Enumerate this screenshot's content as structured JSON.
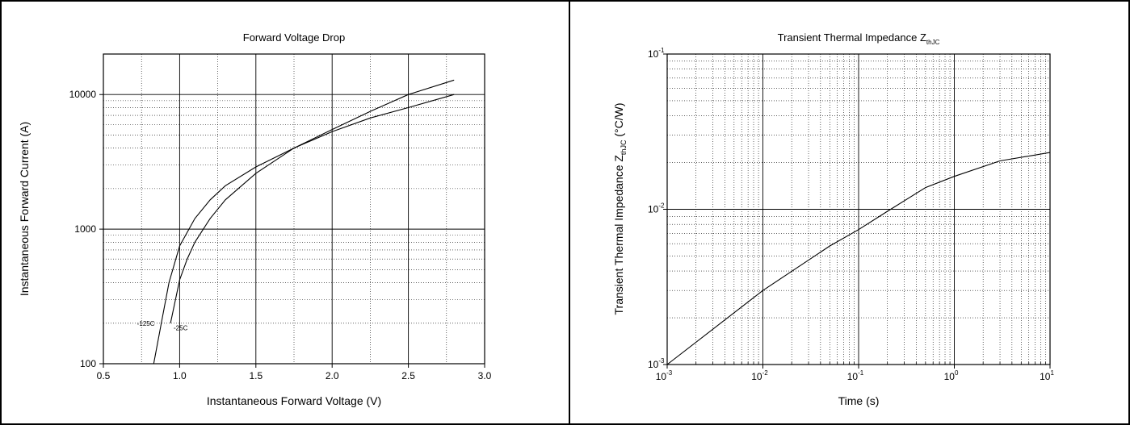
{
  "chart_data": [
    {
      "type": "line",
      "title": "Forward Voltage Drop",
      "xlabel": "Instantaneous Forward Voltage (V)",
      "ylabel": "Instantaneous Forward Current (A)",
      "xscale": "linear",
      "yscale": "log",
      "xlim": [
        0.5,
        3.0
      ],
      "ylim": [
        100,
        20000
      ],
      "x_ticks": [
        0.5,
        1.0,
        1.5,
        2.0,
        2.5,
        3.0
      ],
      "x_tick_labels": [
        "0.5",
        "1.0",
        "1.5",
        "2.0",
        "2.5",
        "3.0"
      ],
      "y_ticks": [
        100,
        1000,
        10000
      ],
      "y_tick_labels": [
        "100",
        "1000",
        "10000"
      ],
      "grid": true,
      "series": [
        {
          "name": "125C",
          "points": [
            [
              0.83,
              100
            ],
            [
              0.88,
              200
            ],
            [
              0.93,
              400
            ],
            [
              1.0,
              750
            ],
            [
              1.1,
              1200
            ],
            [
              1.2,
              1650
            ],
            [
              1.3,
              2100
            ],
            [
              1.5,
              2900
            ],
            [
              1.75,
              4000
            ],
            [
              2.0,
              5300
            ],
            [
              2.25,
              6700
            ],
            [
              2.5,
              8000
            ],
            [
              2.8,
              10000
            ]
          ]
        },
        {
          "name": "25C",
          "points": [
            [
              0.94,
              200
            ],
            [
              1.0,
              420
            ],
            [
              1.05,
              600
            ],
            [
              1.1,
              800
            ],
            [
              1.2,
              1200
            ],
            [
              1.3,
              1650
            ],
            [
              1.5,
              2600
            ],
            [
              1.75,
              4000
            ],
            [
              2.0,
              5500
            ],
            [
              2.25,
              7500
            ],
            [
              2.5,
              10000
            ],
            [
              2.8,
              12800
            ]
          ]
        }
      ],
      "annotations": [
        {
          "text": "125C",
          "x": 0.72,
          "y": 200
        },
        {
          "text": "25C",
          "x": 0.96,
          "y": 185
        }
      ]
    },
    {
      "type": "line",
      "title_main": "Transient Thermal Impedance Z",
      "title_sub": "thJC",
      "xlabel": "Time (s)",
      "ylabel_main": "Transient Thermal Impedance Z",
      "ylabel_sub": "thJC",
      "ylabel_unit": " (°C/W)",
      "xscale": "log",
      "yscale": "log",
      "xlim": [
        0.001,
        10
      ],
      "ylim": [
        0.001,
        0.1
      ],
      "x_tick_bases": [
        "10",
        "10",
        "10",
        "10",
        "10"
      ],
      "x_tick_exps": [
        "-3",
        "-2",
        "-1",
        "0",
        "1"
      ],
      "y_tick_bases": [
        "10",
        "10",
        "10"
      ],
      "y_tick_exps": [
        "-3",
        "-2",
        "-1"
      ],
      "grid": true,
      "series": [
        {
          "points": [
            [
              0.001,
              0.001
            ],
            [
              0.01,
              0.003
            ],
            [
              0.05,
              0.0058
            ],
            [
              0.1,
              0.0074
            ],
            [
              0.2,
              0.0097
            ],
            [
              0.5,
              0.0138
            ],
            [
              1,
              0.0163
            ],
            [
              3,
              0.0205
            ],
            [
              10,
              0.0232
            ]
          ]
        }
      ]
    }
  ]
}
